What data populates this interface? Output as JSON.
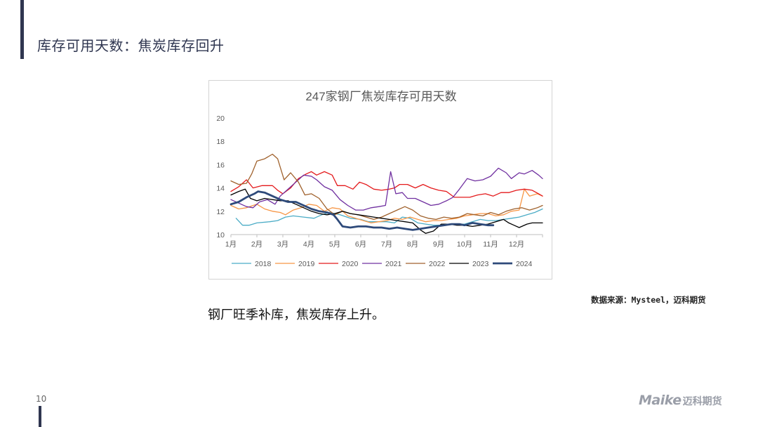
{
  "slide": {
    "title": "库存可用天数：焦炭库存回升",
    "source": "数据来源：Mysteel，迈科期货",
    "body": "钢厂旺季补库，焦炭库存上升。",
    "page_number": "10",
    "logo_en": "Maike",
    "logo_cn": "迈科期货"
  },
  "chart_data": {
    "type": "line",
    "title": "247家钢厂焦炭库存可用天数",
    "xlabel": "",
    "ylabel": "",
    "ylim": [
      10,
      20
    ],
    "yticks": [
      10,
      12,
      14,
      16,
      18,
      20
    ],
    "xlim": [
      1,
      13
    ],
    "xticks": [
      {
        "value": 1,
        "label": "1月"
      },
      {
        "value": 2,
        "label": "2月"
      },
      {
        "value": 3,
        "label": "3月"
      },
      {
        "value": 4,
        "label": "4月"
      },
      {
        "value": 5,
        "label": "5月"
      },
      {
        "value": 6,
        "label": "6月"
      },
      {
        "value": 7,
        "label": "7月"
      },
      {
        "value": 8,
        "label": "8月"
      },
      {
        "value": 9,
        "label": "9月"
      },
      {
        "value": 10,
        "label": "10月"
      },
      {
        "value": 11,
        "label": "11月"
      },
      {
        "value": 12,
        "label": "12月"
      }
    ],
    "grid": false,
    "legend_position": "bottom",
    "series": [
      {
        "name": "2018",
        "color": "#4bacc6",
        "width": 1.3,
        "points": [
          [
            1.2,
            11.4
          ],
          [
            1.45,
            10.8
          ],
          [
            1.7,
            10.8
          ],
          [
            2.0,
            11.0
          ],
          [
            2.5,
            11.1
          ],
          [
            2.8,
            11.2
          ],
          [
            3.1,
            11.5
          ],
          [
            3.4,
            11.6
          ],
          [
            3.8,
            11.5
          ],
          [
            4.2,
            11.4
          ],
          [
            4.5,
            11.7
          ],
          [
            4.8,
            11.9
          ],
          [
            5.2,
            11.7
          ],
          [
            5.6,
            11.4
          ],
          [
            6.0,
            11.3
          ],
          [
            6.3,
            11.1
          ],
          [
            6.6,
            11.1
          ],
          [
            7.0,
            11.1
          ],
          [
            7.3,
            11.0
          ],
          [
            7.6,
            11.5
          ],
          [
            7.9,
            11.4
          ],
          [
            8.2,
            11.0
          ],
          [
            8.5,
            10.9
          ],
          [
            8.8,
            10.8
          ],
          [
            9.1,
            10.8
          ],
          [
            9.4,
            10.9
          ],
          [
            9.7,
            10.9
          ],
          [
            10.0,
            10.9
          ],
          [
            10.3,
            11.1
          ],
          [
            10.6,
            11.3
          ],
          [
            10.9,
            11.2
          ],
          [
            11.2,
            11.2
          ],
          [
            11.5,
            11.3
          ],
          [
            11.8,
            11.4
          ],
          [
            12.1,
            11.5
          ],
          [
            12.4,
            11.7
          ],
          [
            12.7,
            11.9
          ],
          [
            13.0,
            12.2
          ]
        ]
      },
      {
        "name": "2019",
        "color": "#f79646",
        "width": 1.3,
        "points": [
          [
            1.0,
            12.5
          ],
          [
            1.3,
            12.2
          ],
          [
            1.6,
            12.3
          ],
          [
            2.0,
            12.6
          ],
          [
            2.3,
            12.2
          ],
          [
            2.6,
            12.0
          ],
          [
            2.9,
            11.9
          ],
          [
            3.1,
            11.7
          ],
          [
            3.4,
            12.1
          ],
          [
            3.7,
            12.3
          ],
          [
            4.0,
            12.6
          ],
          [
            4.3,
            12.5
          ],
          [
            4.6,
            12.0
          ],
          [
            4.9,
            12.3
          ],
          [
            5.2,
            12.2
          ],
          [
            5.5,
            11.6
          ],
          [
            5.8,
            11.4
          ],
          [
            6.1,
            11.2
          ],
          [
            6.4,
            11.0
          ],
          [
            6.7,
            11.1
          ],
          [
            7.0,
            11.2
          ],
          [
            7.3,
            11.4
          ],
          [
            7.6,
            11.3
          ],
          [
            7.9,
            11.5
          ],
          [
            8.2,
            11.3
          ],
          [
            8.5,
            11.1
          ],
          [
            8.8,
            11.2
          ],
          [
            9.1,
            11.2
          ],
          [
            9.4,
            11.3
          ],
          [
            9.7,
            11.4
          ],
          [
            10.0,
            11.6
          ],
          [
            10.3,
            11.7
          ],
          [
            10.6,
            11.8
          ],
          [
            10.9,
            11.8
          ],
          [
            11.2,
            11.6
          ],
          [
            11.5,
            11.7
          ],
          [
            11.8,
            12.0
          ],
          [
            12.1,
            12.1
          ],
          [
            12.3,
            13.9
          ],
          [
            12.5,
            13.3
          ],
          [
            12.8,
            13.5
          ],
          [
            13.0,
            13.3
          ]
        ]
      },
      {
        "name": "2020",
        "color": "#e41a1c",
        "width": 1.3,
        "points": [
          [
            1.0,
            13.7
          ],
          [
            1.3,
            14.1
          ],
          [
            1.6,
            14.7
          ],
          [
            1.85,
            14.0
          ],
          [
            2.2,
            14.2
          ],
          [
            2.6,
            14.2
          ],
          [
            2.8,
            13.8
          ],
          [
            3.0,
            13.5
          ],
          [
            3.3,
            14.0
          ],
          [
            3.6,
            14.8
          ],
          [
            3.9,
            15.2
          ],
          [
            4.1,
            15.4
          ],
          [
            4.3,
            15.1
          ],
          [
            4.6,
            15.4
          ],
          [
            4.9,
            15.1
          ],
          [
            5.1,
            14.2
          ],
          [
            5.4,
            14.2
          ],
          [
            5.7,
            13.9
          ],
          [
            5.95,
            14.5
          ],
          [
            6.2,
            14.3
          ],
          [
            6.5,
            13.9
          ],
          [
            6.8,
            13.8
          ],
          [
            7.1,
            13.9
          ],
          [
            7.3,
            14.0
          ],
          [
            7.5,
            14.3
          ],
          [
            7.8,
            14.3
          ],
          [
            8.1,
            14.0
          ],
          [
            8.4,
            14.3
          ],
          [
            8.7,
            14.0
          ],
          [
            9.0,
            13.8
          ],
          [
            9.3,
            13.7
          ],
          [
            9.6,
            13.2
          ],
          [
            9.9,
            13.2
          ],
          [
            10.2,
            13.2
          ],
          [
            10.5,
            13.4
          ],
          [
            10.8,
            13.5
          ],
          [
            11.1,
            13.3
          ],
          [
            11.4,
            13.6
          ],
          [
            11.7,
            13.6
          ],
          [
            12.0,
            13.8
          ],
          [
            12.3,
            13.9
          ],
          [
            12.6,
            13.8
          ],
          [
            12.85,
            13.5
          ],
          [
            13.0,
            13.3
          ]
        ]
      },
      {
        "name": "2021",
        "color": "#7030a0",
        "width": 1.3,
        "points": [
          [
            1.0,
            13.0
          ],
          [
            1.3,
            12.7
          ],
          [
            1.6,
            12.4
          ],
          [
            1.85,
            12.3
          ],
          [
            2.1,
            12.8
          ],
          [
            2.4,
            13.0
          ],
          [
            2.7,
            12.6
          ],
          [
            2.9,
            13.3
          ],
          [
            3.2,
            13.9
          ],
          [
            3.5,
            14.5
          ],
          [
            3.8,
            15.1
          ],
          [
            4.1,
            15.0
          ],
          [
            4.3,
            14.7
          ],
          [
            4.6,
            14.1
          ],
          [
            4.9,
            13.8
          ],
          [
            5.2,
            13.0
          ],
          [
            5.5,
            12.5
          ],
          [
            5.8,
            12.1
          ],
          [
            6.1,
            12.1
          ],
          [
            6.4,
            12.3
          ],
          [
            6.7,
            12.4
          ],
          [
            6.95,
            12.5
          ],
          [
            7.15,
            15.4
          ],
          [
            7.35,
            13.5
          ],
          [
            7.6,
            13.6
          ],
          [
            7.8,
            13.1
          ],
          [
            8.1,
            13.1
          ],
          [
            8.4,
            12.8
          ],
          [
            8.7,
            12.5
          ],
          [
            9.0,
            12.6
          ],
          [
            9.3,
            12.9
          ],
          [
            9.55,
            13.2
          ],
          [
            9.8,
            13.9
          ],
          [
            10.1,
            14.8
          ],
          [
            10.4,
            14.6
          ],
          [
            10.7,
            14.7
          ],
          [
            11.0,
            15.0
          ],
          [
            11.3,
            15.7
          ],
          [
            11.6,
            15.3
          ],
          [
            11.8,
            14.8
          ],
          [
            12.1,
            15.3
          ],
          [
            12.3,
            15.2
          ],
          [
            12.6,
            15.5
          ],
          [
            12.85,
            15.1
          ],
          [
            13.0,
            14.8
          ]
        ]
      },
      {
        "name": "2022",
        "color": "#a0622d",
        "width": 1.3,
        "points": [
          [
            1.0,
            14.6
          ],
          [
            1.3,
            14.3
          ],
          [
            1.6,
            14.4
          ],
          [
            1.8,
            15.2
          ],
          [
            2.0,
            16.3
          ],
          [
            2.3,
            16.5
          ],
          [
            2.6,
            16.9
          ],
          [
            2.8,
            16.5
          ],
          [
            3.05,
            14.7
          ],
          [
            3.3,
            15.3
          ],
          [
            3.6,
            14.5
          ],
          [
            3.85,
            13.4
          ],
          [
            4.1,
            13.5
          ],
          [
            4.4,
            13.1
          ],
          [
            4.7,
            12.2
          ],
          [
            5.0,
            11.7
          ],
          [
            5.3,
            12.0
          ],
          [
            5.6,
            11.8
          ],
          [
            5.9,
            11.7
          ],
          [
            6.2,
            11.5
          ],
          [
            6.5,
            11.3
          ],
          [
            6.8,
            11.5
          ],
          [
            7.1,
            11.8
          ],
          [
            7.4,
            12.1
          ],
          [
            7.7,
            12.4
          ],
          [
            8.0,
            12.1
          ],
          [
            8.3,
            11.6
          ],
          [
            8.6,
            11.4
          ],
          [
            8.9,
            11.3
          ],
          [
            9.2,
            11.5
          ],
          [
            9.5,
            11.4
          ],
          [
            9.8,
            11.5
          ],
          [
            10.1,
            11.8
          ],
          [
            10.4,
            11.7
          ],
          [
            10.7,
            11.6
          ],
          [
            11.0,
            11.9
          ],
          [
            11.3,
            11.7
          ],
          [
            11.6,
            12.0
          ],
          [
            11.9,
            12.2
          ],
          [
            12.2,
            12.3
          ],
          [
            12.5,
            12.1
          ],
          [
            12.8,
            12.3
          ],
          [
            13.0,
            12.5
          ]
        ]
      },
      {
        "name": "2023",
        "color": "#000000",
        "width": 1.3,
        "points": [
          [
            1.0,
            13.4
          ],
          [
            1.3,
            13.7
          ],
          [
            1.55,
            13.9
          ],
          [
            1.75,
            13.1
          ],
          [
            2.0,
            12.9
          ],
          [
            2.3,
            13.1
          ],
          [
            2.6,
            13.0
          ],
          [
            2.9,
            12.9
          ],
          [
            3.2,
            12.9
          ],
          [
            3.5,
            12.6
          ],
          [
            3.8,
            12.3
          ],
          [
            4.1,
            12.0
          ],
          [
            4.4,
            11.8
          ],
          [
            4.7,
            11.7
          ],
          [
            5.0,
            11.8
          ],
          [
            5.3,
            12.0
          ],
          [
            5.6,
            11.8
          ],
          [
            5.9,
            11.7
          ],
          [
            6.2,
            11.6
          ],
          [
            6.5,
            11.5
          ],
          [
            6.8,
            11.4
          ],
          [
            7.1,
            11.3
          ],
          [
            7.4,
            11.2
          ],
          [
            7.7,
            11.1
          ],
          [
            8.0,
            11.0
          ],
          [
            8.3,
            10.4
          ],
          [
            8.5,
            10.1
          ],
          [
            8.8,
            10.3
          ],
          [
            9.1,
            10.9
          ],
          [
            9.4,
            10.9
          ],
          [
            9.7,
            10.8
          ],
          [
            10.0,
            10.8
          ],
          [
            10.3,
            10.7
          ],
          [
            10.6,
            10.8
          ],
          [
            10.9,
            10.9
          ],
          [
            11.2,
            11.1
          ],
          [
            11.5,
            11.3
          ],
          [
            11.7,
            11.0
          ],
          [
            11.9,
            10.8
          ],
          [
            12.1,
            10.6
          ],
          [
            12.4,
            10.9
          ],
          [
            12.6,
            11.0
          ],
          [
            12.9,
            11.0
          ],
          [
            13.0,
            11.0
          ]
        ]
      },
      {
        "name": "2024",
        "color": "#2e4a7a",
        "width": 2.8,
        "points": [
          [
            1.0,
            12.6
          ],
          [
            1.3,
            12.8
          ],
          [
            1.6,
            13.2
          ],
          [
            1.9,
            13.5
          ],
          [
            2.05,
            13.7
          ],
          [
            2.3,
            13.6
          ],
          [
            2.6,
            13.3
          ],
          [
            2.9,
            13.0
          ],
          [
            3.2,
            12.8
          ],
          [
            3.5,
            12.8
          ],
          [
            3.8,
            12.5
          ],
          [
            4.1,
            12.2
          ],
          [
            4.4,
            12.0
          ],
          [
            4.7,
            11.9
          ],
          [
            4.95,
            11.7
          ],
          [
            5.1,
            11.3
          ],
          [
            5.3,
            10.7
          ],
          [
            5.6,
            10.6
          ],
          [
            5.9,
            10.7
          ],
          [
            6.2,
            10.7
          ],
          [
            6.5,
            10.6
          ],
          [
            6.8,
            10.6
          ],
          [
            7.1,
            10.5
          ],
          [
            7.4,
            10.6
          ],
          [
            7.7,
            10.5
          ],
          [
            8.0,
            10.4
          ],
          [
            8.3,
            10.5
          ],
          [
            8.6,
            10.6
          ],
          [
            8.9,
            10.7
          ],
          [
            9.2,
            10.8
          ],
          [
            9.5,
            10.9
          ],
          [
            9.8,
            10.9
          ],
          [
            10.0,
            10.8
          ],
          [
            10.3,
            11.0
          ],
          [
            10.6,
            10.9
          ],
          [
            10.9,
            10.8
          ],
          [
            11.1,
            10.8
          ]
        ]
      }
    ]
  }
}
